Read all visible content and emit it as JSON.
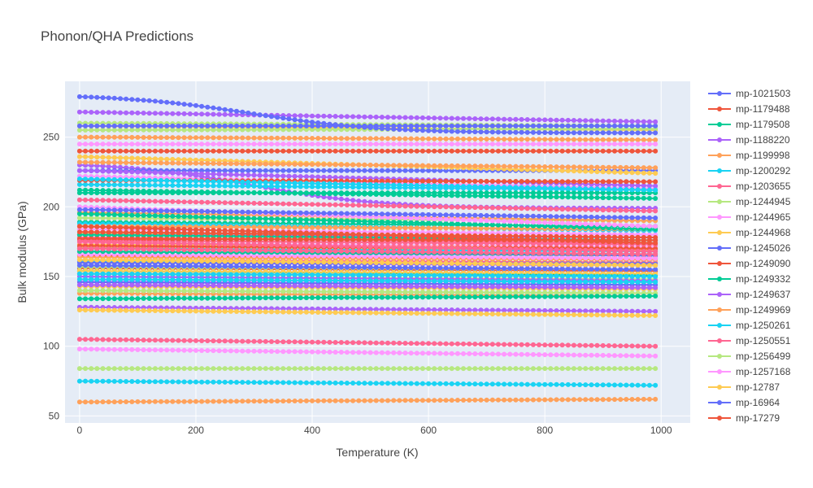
{
  "chart_data": {
    "type": "line",
    "title": "Phonon/QHA Predictions",
    "xlabel": "Temperature (K)",
    "ylabel": "Bulk modulus (GPa)",
    "xlim": [
      -25,
      1050
    ],
    "ylim": [
      45,
      290
    ],
    "x_ticks": [
      0,
      200,
      400,
      600,
      800,
      1000
    ],
    "y_ticks": [
      50,
      100,
      150,
      200,
      250
    ],
    "x_start": 0,
    "x_end": 990,
    "x_step": 10,
    "grid": true,
    "legend_position": "right",
    "series": [
      {
        "name": "mp-1021503",
        "color": "#636efa",
        "start": 279,
        "end": 253,
        "shape": "sigmoid"
      },
      {
        "name": "mp-1179488",
        "color": "#EF553B",
        "start": 240,
        "end": 240,
        "shape": "linear"
      },
      {
        "name": "mp-1179508",
        "color": "#00cc96",
        "start": 212,
        "end": 206,
        "shape": "linear"
      },
      {
        "name": "mp-1188220",
        "color": "#ab63fa",
        "start": 268,
        "end": 261,
        "shape": "linear"
      },
      {
        "name": "mp-1199998",
        "color": "#FFA15A",
        "start": 60,
        "end": 62,
        "shape": "linear"
      },
      {
        "name": "mp-1200292",
        "color": "#19d3f3",
        "start": 75,
        "end": 72,
        "shape": "linear"
      },
      {
        "name": "mp-1203655",
        "color": "#FF6692",
        "start": 105,
        "end": 100,
        "shape": "linear"
      },
      {
        "name": "mp-1244945",
        "color": "#B6E880",
        "start": 84,
        "end": 84,
        "shape": "linear"
      },
      {
        "name": "mp-1244965",
        "color": "#FF97FF",
        "start": 98,
        "end": 93,
        "shape": "linear"
      },
      {
        "name": "mp-1244968",
        "color": "#FECB52",
        "start": 126,
        "end": 122,
        "shape": "linear"
      },
      {
        "name": "mp-1245026",
        "color": "#636efa",
        "start": 258,
        "end": 258,
        "shape": "linear"
      },
      {
        "name": "mp-1249090",
        "color": "#EF553B",
        "start": 186,
        "end": 174,
        "shape": "linear"
      },
      {
        "name": "mp-1249332",
        "color": "#00cc96",
        "start": 134,
        "end": 136,
        "shape": "linear"
      },
      {
        "name": "mp-1249637",
        "color": "#ab63fa",
        "start": 128,
        "end": 125,
        "shape": "linear"
      },
      {
        "name": "mp-1249969",
        "color": "#FFA15A",
        "start": 232,
        "end": 228,
        "shape": "linear"
      },
      {
        "name": "mp-1250261",
        "color": "#19d3f3",
        "start": 220,
        "end": 212,
        "shape": "linear"
      },
      {
        "name": "mp-1250551",
        "color": "#FF6692",
        "start": 175,
        "end": 168,
        "shape": "linear"
      },
      {
        "name": "mp-1256499",
        "color": "#B6E880",
        "start": 255,
        "end": 256,
        "shape": "linear"
      },
      {
        "name": "mp-1257168",
        "color": "#FF97FF",
        "start": 245,
        "end": 245,
        "shape": "linear"
      },
      {
        "name": "mp-12787",
        "color": "#FECB52",
        "start": 236,
        "end": 224,
        "shape": "linear"
      },
      {
        "name": "mp-16964",
        "color": "#636efa",
        "start": 198,
        "end": 192,
        "shape": "linear"
      },
      {
        "name": "mp-17279",
        "color": "#EF553B",
        "start": 219,
        "end": 218,
        "shape": "linear"
      },
      {
        "color": "#00cc96",
        "start": 210,
        "end": 210,
        "shape": "linear"
      },
      {
        "color": "#ab63fa",
        "start": 226,
        "end": 215,
        "shape": "linear"
      },
      {
        "color": "#FFA15A",
        "start": 250,
        "end": 248,
        "shape": "linear"
      },
      {
        "color": "#19d3f3",
        "start": 216,
        "end": 212,
        "shape": "linear"
      },
      {
        "color": "#FF6692",
        "start": 205,
        "end": 197,
        "shape": "linear"
      },
      {
        "color": "#B6E880",
        "start": 260,
        "end": 258,
        "shape": "linear"
      },
      {
        "color": "#FF97FF",
        "start": 200,
        "end": 186,
        "shape": "linear"
      },
      {
        "color": "#FECB52",
        "start": 258,
        "end": 255,
        "shape": "linear"
      },
      {
        "color": "#636efa",
        "start": 226,
        "end": 226,
        "shape": "linear"
      },
      {
        "color": "#EF553B",
        "start": 182,
        "end": 178,
        "shape": "linear"
      },
      {
        "color": "#00cc96",
        "start": 195,
        "end": 184,
        "shape": "linear"
      },
      {
        "color": "#ab63fa",
        "start": 230,
        "end": 199,
        "shape": "sigmoid"
      },
      {
        "color": "#FFA15A",
        "start": 196,
        "end": 190,
        "shape": "linear"
      },
      {
        "color": "#19d3f3",
        "start": 152,
        "end": 150,
        "shape": "linear"
      },
      {
        "color": "#FF6692",
        "start": 170,
        "end": 166,
        "shape": "linear"
      },
      {
        "color": "#B6E880",
        "start": 192,
        "end": 190,
        "shape": "linear"
      },
      {
        "color": "#FF97FF",
        "start": 222,
        "end": 213,
        "shape": "linear"
      },
      {
        "color": "#FECB52",
        "start": 162,
        "end": 158,
        "shape": "linear"
      },
      {
        "color": "#636efa",
        "start": 158,
        "end": 155,
        "shape": "linear"
      },
      {
        "color": "#EF553B",
        "start": 177,
        "end": 176,
        "shape": "linear"
      },
      {
        "color": "#00cc96",
        "start": 168,
        "end": 166,
        "shape": "linear"
      },
      {
        "color": "#ab63fa",
        "start": 144,
        "end": 142,
        "shape": "linear"
      },
      {
        "color": "#FFA15A",
        "start": 186,
        "end": 184,
        "shape": "linear"
      },
      {
        "color": "#19d3f3",
        "start": 148,
        "end": 146,
        "shape": "linear"
      },
      {
        "color": "#FF6692",
        "start": 176,
        "end": 173,
        "shape": "linear"
      },
      {
        "color": "#B6E880",
        "start": 140,
        "end": 138,
        "shape": "linear"
      },
      {
        "color": "#FF97FF",
        "start": 166,
        "end": 163,
        "shape": "linear"
      },
      {
        "color": "#FECB52",
        "start": 154,
        "end": 152,
        "shape": "linear"
      },
      {
        "color": "#636efa",
        "start": 160,
        "end": 159,
        "shape": "linear"
      },
      {
        "color": "#EF553B",
        "start": 172,
        "end": 170,
        "shape": "linear"
      },
      {
        "color": "#00cc96",
        "start": 180,
        "end": 176,
        "shape": "linear"
      },
      {
        "color": "#ab63fa",
        "start": 150,
        "end": 147,
        "shape": "linear"
      },
      {
        "color": "#FFA15A",
        "start": 164,
        "end": 162,
        "shape": "linear"
      },
      {
        "color": "#19d3f3",
        "start": 188,
        "end": 183,
        "shape": "linear"
      },
      {
        "color": "#FF6692",
        "start": 178,
        "end": 174,
        "shape": "linear"
      },
      {
        "color": "#B6E880",
        "start": 157,
        "end": 155,
        "shape": "linear"
      },
      {
        "color": "#FF97FF",
        "start": 184,
        "end": 180,
        "shape": "linear"
      },
      {
        "color": "#FECB52",
        "start": 173,
        "end": 170,
        "shape": "linear"
      },
      {
        "color": "#636efa",
        "start": 146,
        "end": 144,
        "shape": "linear"
      },
      {
        "color": "#EF553B",
        "start": 165,
        "end": 163,
        "shape": "linear"
      },
      {
        "color": "#00cc96",
        "start": 154,
        "end": 151,
        "shape": "linear"
      },
      {
        "color": "#ab63fa",
        "start": 160,
        "end": 158,
        "shape": "linear"
      },
      {
        "color": "#FFA15A",
        "start": 138,
        "end": 136,
        "shape": "linear"
      },
      {
        "color": "#19d3f3",
        "start": 170,
        "end": 168,
        "shape": "linear"
      },
      {
        "color": "#FF6692",
        "start": 162,
        "end": 160,
        "shape": "linear"
      },
      {
        "color": "#B6E880",
        "start": 150,
        "end": 148,
        "shape": "linear"
      },
      {
        "color": "#FF97FF",
        "start": 174,
        "end": 171,
        "shape": "linear"
      },
      {
        "color": "#FECB52",
        "start": 143,
        "end": 141,
        "shape": "linear"
      },
      {
        "color": "#636efa",
        "start": 168,
        "end": 165,
        "shape": "linear"
      },
      {
        "color": "#EF553B",
        "start": 156,
        "end": 154,
        "shape": "linear"
      },
      {
        "color": "#00cc96",
        "start": 189,
        "end": 186,
        "shape": "linear"
      },
      {
        "color": "#ab63fa",
        "start": 180,
        "end": 178,
        "shape": "linear"
      },
      {
        "color": "#FFA15A",
        "start": 171,
        "end": 169,
        "shape": "linear"
      },
      {
        "color": "#19d3f3",
        "start": 161,
        "end": 159,
        "shape": "linear"
      },
      {
        "color": "#FF6692",
        "start": 152,
        "end": 150,
        "shape": "linear"
      },
      {
        "color": "#B6E880",
        "start": 178,
        "end": 176,
        "shape": "linear"
      },
      {
        "color": "#FF97FF",
        "start": 147,
        "end": 146,
        "shape": "linear"
      },
      {
        "color": "#FECB52",
        "start": 181,
        "end": 178,
        "shape": "linear"
      }
    ]
  }
}
